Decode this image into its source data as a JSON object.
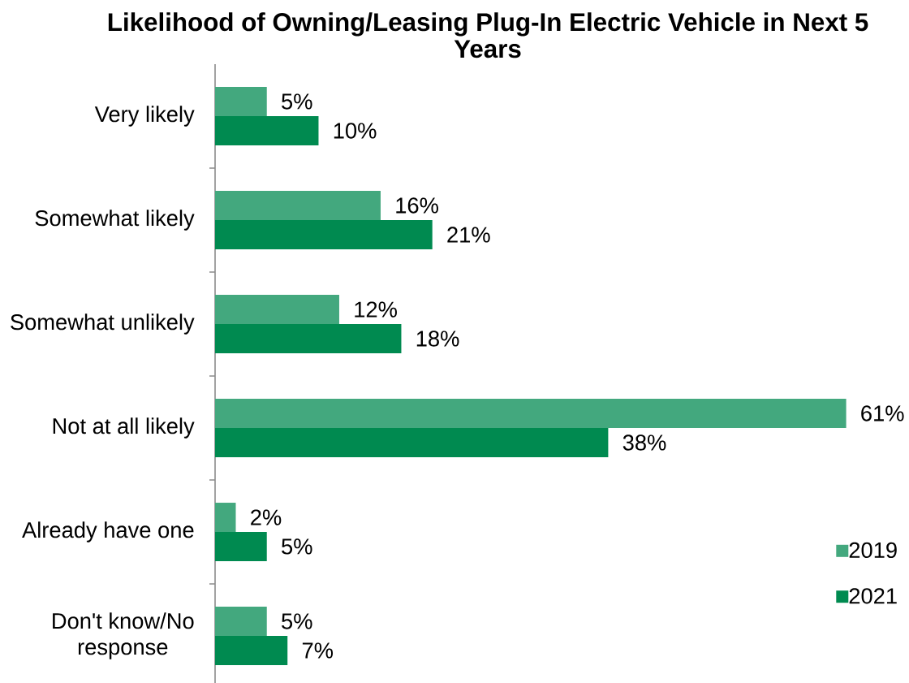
{
  "chart_data": {
    "type": "bar",
    "orientation": "horizontal",
    "title": "Likelihood of Owning/Leasing Plug-In Electric Vehicle in Next 5 Years",
    "categories": [
      "Very likely",
      "Somewhat likely",
      "Somewhat unlikely",
      "Not at all likely",
      "Already have one",
      "Don't know/No response"
    ],
    "series": [
      {
        "name": "2019",
        "color": "#43a87e",
        "values": [
          5,
          16,
          12,
          61,
          2,
          5
        ],
        "value_labels": [
          "5%",
          "16%",
          "12%",
          "61%",
          "2%",
          "5%"
        ]
      },
      {
        "name": "2021",
        "color": "#008a50",
        "values": [
          10,
          21,
          18,
          38,
          5,
          7
        ],
        "value_labels": [
          "10%",
          "21%",
          "18%",
          "38%",
          "5%",
          "7%"
        ]
      }
    ],
    "legend": "bottom right"
  }
}
